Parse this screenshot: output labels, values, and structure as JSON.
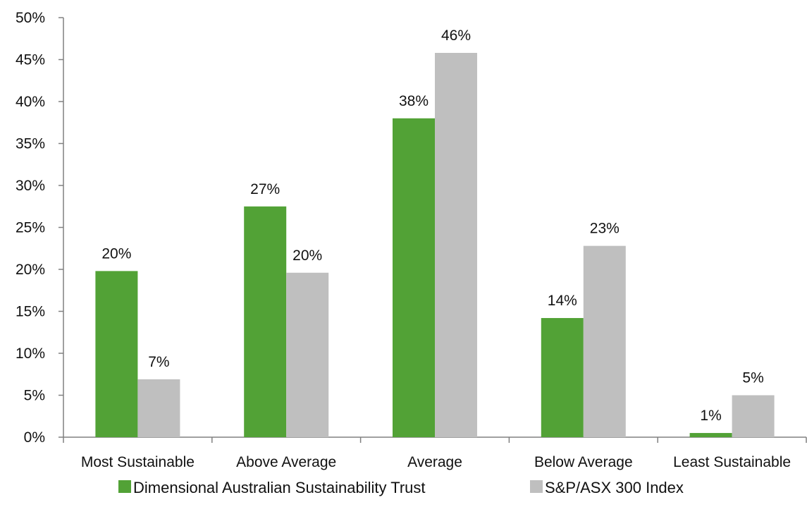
{
  "chart_data": {
    "type": "bar",
    "title": "",
    "xlabel": "",
    "ylabel": "",
    "categories": [
      "Most Sustainable",
      "Above Average",
      "Average",
      "Below Average",
      "Least Sustainable"
    ],
    "series": [
      {
        "name": "Dimensional Australian Sustainability Trust",
        "color": "#52a236",
        "values": [
          19.8,
          27.5,
          38.0,
          14.2,
          0.5
        ],
        "labels": [
          "20%",
          "27%",
          "38%",
          "14%",
          "1%"
        ]
      },
      {
        "name": "S&P/ASX 300 Index",
        "color": "#bfbfbf",
        "values": [
          6.9,
          19.6,
          45.8,
          22.8,
          5.0
        ],
        "labels": [
          "7%",
          "20%",
          "46%",
          "23%",
          "5%"
        ]
      }
    ],
    "ylim": [
      0,
      50
    ],
    "yticks": [
      "0%",
      "5%",
      "10%",
      "15%",
      "20%",
      "25%",
      "30%",
      "35%",
      "40%",
      "45%",
      "50%"
    ],
    "ytick_values": [
      0,
      5,
      10,
      15,
      20,
      25,
      30,
      35,
      40,
      45,
      50
    ],
    "grid": false,
    "legend_position": "bottom"
  }
}
